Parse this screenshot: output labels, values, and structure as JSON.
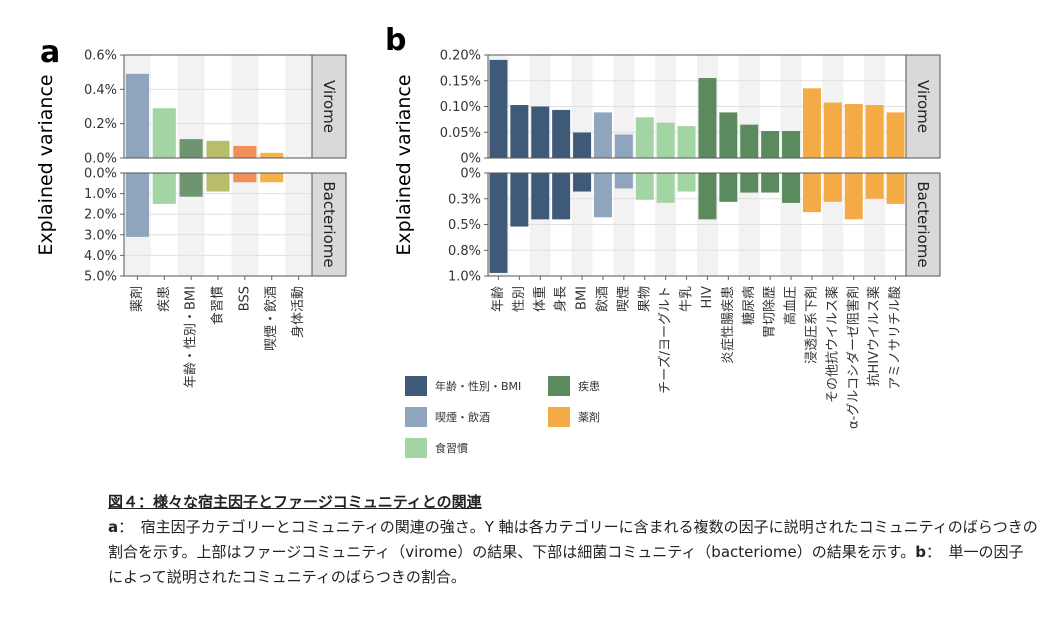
{
  "figure": {
    "panel_a_letter": "a",
    "panel_b_letter": "b",
    "ylabel": "Explained variance",
    "virome_strip": "Virome",
    "bacteriome_strip": "Bacteriome"
  },
  "chart_data": [
    {
      "type": "bar",
      "panel": "a",
      "ylabel": "Explained variance",
      "categories": [
        "薬剤",
        "疾患",
        "年齢・性別・BMI",
        "食習慣",
        "BSS",
        "喫煙・飲酒",
        "身体活動"
      ],
      "colors": [
        "#8ea5bd",
        "#a3d4a3",
        "#6f9470",
        "#b8bd6a",
        "#f28f58",
        "#f5b24a",
        "#cccccc"
      ],
      "virome": {
        "label": "Virome",
        "values": [
          0.49,
          0.29,
          0.11,
          0.1,
          0.07,
          0.03,
          0.0
        ],
        "ylim": [
          0,
          0.6
        ],
        "ticks": [
          "0.0%",
          "0.2%",
          "0.4%",
          "0.6%"
        ]
      },
      "bacteriome": {
        "label": "Bacteriome",
        "values": [
          3.1,
          1.5,
          1.15,
          0.9,
          0.45,
          0.45,
          0.0
        ],
        "ylim": [
          0,
          5.0
        ],
        "ticks": [
          "0.0%",
          "1.0%",
          "2.0%",
          "3.0%",
          "4.0%",
          "5.0%"
        ]
      }
    },
    {
      "type": "bar",
      "panel": "b",
      "ylabel": "Explained variance",
      "categories": [
        "年齢",
        "性別",
        "体重",
        "身長",
        "BMI",
        "飲酒",
        "喫煙",
        "果物",
        "チーズ/ヨーグルト",
        "牛乳",
        "HIV",
        "炎症性腸疾患",
        "糖尿病",
        "胃切除歴",
        "高血圧",
        "浸透圧系下剤",
        "その他抗ウイルス薬",
        "α-グルコシダーゼ阻害剤",
        "抗HIVウイルス薬",
        "アミノサリチル酸"
      ],
      "groups": [
        "年齢・性別・BMI",
        "年齢・性別・BMI",
        "年齢・性別・BMI",
        "年齢・性別・BMI",
        "年齢・性別・BMI",
        "喫煙・飲酒",
        "喫煙・飲酒",
        "食習慣",
        "食習慣",
        "食習慣",
        "疾患",
        "疾患",
        "疾患",
        "疾患",
        "疾患",
        "薬剤",
        "薬剤",
        "薬剤",
        "薬剤",
        "薬剤"
      ],
      "virome": {
        "label": "Virome",
        "values": [
          0.2,
          0.108,
          0.105,
          0.098,
          0.052,
          0.093,
          0.048,
          0.083,
          0.072,
          0.065,
          0.163,
          0.093,
          0.068,
          0.055,
          0.055,
          0.142,
          0.113,
          0.11,
          0.108,
          0.093
        ],
        "ylim": [
          0,
          0.21
        ],
        "ticks": [
          "0%",
          "0.05%",
          "0.10%",
          "0.15%",
          "0.20%"
        ]
      },
      "bacteriome": {
        "label": "Bacteriome",
        "values": [
          0.97,
          0.52,
          0.45,
          0.45,
          0.18,
          0.43,
          0.15,
          0.26,
          0.29,
          0.18,
          0.45,
          0.28,
          0.19,
          0.19,
          0.29,
          0.38,
          0.28,
          0.45,
          0.25,
          0.3
        ],
        "ylim": [
          0,
          1.0
        ],
        "ticks": [
          "0%",
          "0.3%",
          "0.5%",
          "0.8%",
          "1.0%"
        ]
      },
      "legend": [
        {
          "label": "年齢・性別・BMI",
          "color": "#3f5a78"
        },
        {
          "label": "疾患",
          "color": "#5a8a5e"
        },
        {
          "label": "喫煙・飲酒",
          "color": "#8ea5bd"
        },
        {
          "label": "薬剤",
          "color": "#f5ab45"
        },
        {
          "label": "食習慣",
          "color": "#a3d4a3"
        }
      ]
    }
  ],
  "caption": {
    "title": "図４：様々な宿主因子とファージコミュニティとの関連",
    "a_label": "a",
    "a_text": "：　宿主因子カテゴリーとコミュニティの関連の強さ。Y 軸は各カテゴリーに含まれる複数の因子に説明されたコミュニティのばらつきの割合を示す。上部はファージコミュニティ（virome）の結果、下部は細菌コミュニティ（bacteriome）の結果を示す。",
    "b_label": "b",
    "b_text": "：　単一の因子によって説明されたコミュニティのばらつきの割合。"
  }
}
